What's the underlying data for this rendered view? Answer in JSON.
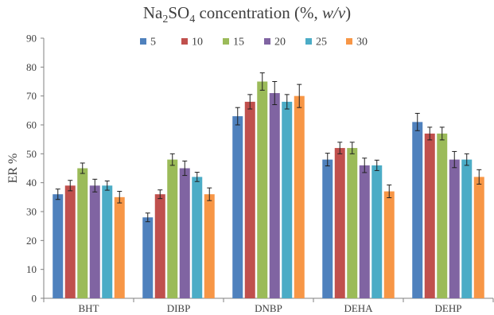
{
  "chart_data": {
    "type": "bar",
    "title": {
      "prefix": "Na",
      "sub1": "2",
      "mid": "SO",
      "sub2": "4",
      "after": " concentration (%, ",
      "italic": "w/v",
      "close": ")"
    },
    "xlabel": "",
    "ylabel": "ER %",
    "ylim": [
      0,
      90
    ],
    "yticks": [
      0,
      10,
      20,
      30,
      40,
      50,
      60,
      70,
      80,
      90
    ],
    "grid": false,
    "legend_position": "top",
    "categories": [
      "BHT",
      "DIBP",
      "DNBP",
      "DEHA",
      "DEHP"
    ],
    "series": [
      {
        "name": "5",
        "color": "#4f81bd",
        "values": [
          36,
          28,
          63,
          48,
          61
        ],
        "errors": [
          1.8,
          1.5,
          3.0,
          2.2,
          3.0
        ]
      },
      {
        "name": "10",
        "color": "#c0504d",
        "values": [
          39,
          36,
          68,
          52,
          57
        ],
        "errors": [
          1.8,
          1.5,
          2.5,
          2.0,
          2.2
        ]
      },
      {
        "name": "15",
        "color": "#9bbb59",
        "values": [
          45,
          48,
          75,
          52,
          57
        ],
        "errors": [
          1.8,
          2.0,
          3.0,
          2.0,
          2.2
        ]
      },
      {
        "name": "20",
        "color": "#8064a2",
        "values": [
          39,
          45,
          71,
          46,
          48
        ],
        "errors": [
          2.2,
          2.5,
          4.0,
          2.5,
          2.8
        ]
      },
      {
        "name": "25",
        "color": "#4bacc6",
        "values": [
          39,
          42,
          68,
          46,
          48
        ],
        "errors": [
          1.6,
          1.6,
          2.5,
          1.8,
          2.0
        ]
      },
      {
        "name": "30",
        "color": "#f79646",
        "values": [
          35,
          36,
          70,
          37,
          42
        ],
        "errors": [
          2.0,
          2.2,
          4.0,
          2.2,
          2.5
        ]
      }
    ]
  }
}
